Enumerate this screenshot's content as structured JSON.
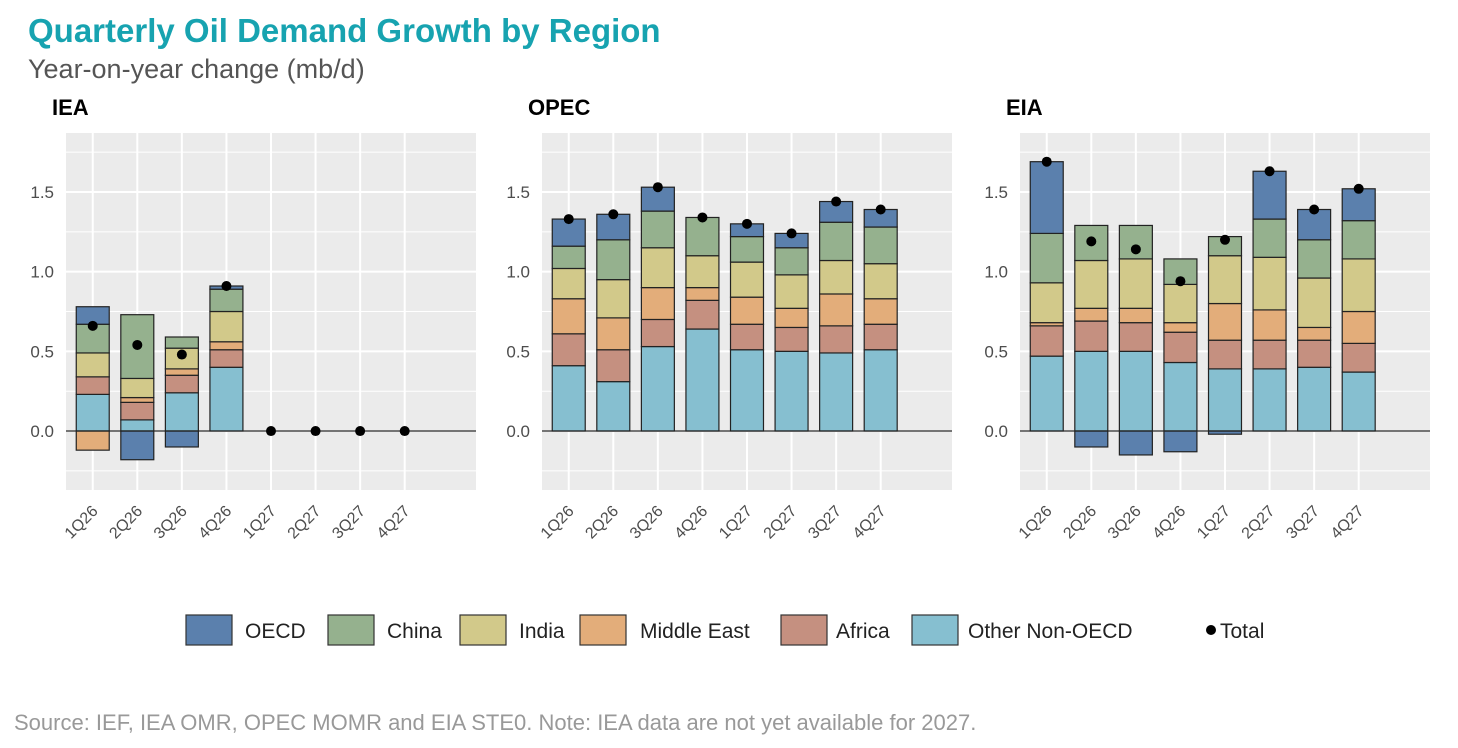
{
  "title": "Quarterly Oil Demand Growth by Region",
  "subtitle": "Year-on-year change (mb/d)",
  "source": "Source: IEF, IEA OMR, OPEC MOMR and EIA STE0. Note: IEA data are not yet available for 2027.",
  "colors": {
    "OECD": "#5b80ad",
    "China": "#95b18e",
    "India": "#d2c98a",
    "Middle East": "#e3ad7a",
    "Africa": "#c59080",
    "Other Non-OECD": "#86bfd0",
    "Total": "#000000",
    "title": "#17a3b0",
    "panel_bg": "#ebebeb"
  },
  "legend": [
    "OECD",
    "China",
    "India",
    "Middle East",
    "Africa",
    "Other Non-OECD",
    "Total"
  ],
  "chart_data": [
    {
      "type": "bar",
      "stacked": true,
      "title": "IEA",
      "categories": [
        "1Q26",
        "2Q26",
        "3Q26",
        "4Q26",
        "1Q27",
        "2Q27",
        "3Q27",
        "4Q27"
      ],
      "ylim": [
        -0.37,
        1.87
      ],
      "yticks": [
        "0.0",
        "0.5",
        "1.0",
        "1.5"
      ],
      "grid": true,
      "legend": "bottom",
      "series": [
        {
          "name": "Other Non-OECD",
          "values": [
            0.23,
            0.07,
            0.24,
            0.4,
            0,
            0,
            0,
            0
          ]
        },
        {
          "name": "Africa",
          "values": [
            0.11,
            0.11,
            0.11,
            0.11,
            0,
            0,
            0,
            0
          ]
        },
        {
          "name": "Middle East",
          "values": [
            -0.12,
            0.03,
            0.04,
            0.05,
            0,
            0,
            0,
            0
          ]
        },
        {
          "name": "India",
          "values": [
            0.15,
            0.12,
            0.13,
            0.19,
            0,
            0,
            0,
            0
          ]
        },
        {
          "name": "China",
          "values": [
            0.18,
            0.4,
            0.07,
            0.14,
            0,
            0,
            0,
            0
          ]
        },
        {
          "name": "OECD",
          "values": [
            0.11,
            -0.18,
            -0.1,
            0.02,
            0,
            0,
            0,
            0
          ]
        }
      ],
      "total": [
        0.66,
        0.54,
        0.48,
        0.91,
        0,
        0,
        0,
        0
      ]
    },
    {
      "type": "bar",
      "stacked": true,
      "title": "OPEC",
      "categories": [
        "1Q26",
        "2Q26",
        "3Q26",
        "4Q26",
        "1Q27",
        "2Q27",
        "3Q27",
        "4Q27"
      ],
      "ylim": [
        -0.37,
        1.87
      ],
      "yticks": [
        "0.0",
        "0.5",
        "1.0",
        "1.5"
      ],
      "grid": true,
      "legend": "bottom",
      "series": [
        {
          "name": "Other Non-OECD",
          "values": [
            0.41,
            0.31,
            0.53,
            0.64,
            0.51,
            0.5,
            0.49,
            0.51
          ]
        },
        {
          "name": "Africa",
          "values": [
            0.2,
            0.2,
            0.17,
            0.18,
            0.16,
            0.15,
            0.17,
            0.16
          ]
        },
        {
          "name": "Middle East",
          "values": [
            0.22,
            0.2,
            0.2,
            0.08,
            0.17,
            0.12,
            0.2,
            0.16
          ]
        },
        {
          "name": "India",
          "values": [
            0.19,
            0.24,
            0.25,
            0.2,
            0.22,
            0.21,
            0.21,
            0.22
          ]
        },
        {
          "name": "China",
          "values": [
            0.14,
            0.25,
            0.23,
            0.24,
            0.16,
            0.17,
            0.24,
            0.23
          ]
        },
        {
          "name": "OECD",
          "values": [
            0.17,
            0.16,
            0.15,
            0.0,
            0.08,
            0.09,
            0.13,
            0.11
          ]
        }
      ],
      "total": [
        1.33,
        1.36,
        1.53,
        1.34,
        1.3,
        1.24,
        1.44,
        1.39
      ]
    },
    {
      "type": "bar",
      "stacked": true,
      "title": "EIA",
      "categories": [
        "1Q26",
        "2Q26",
        "3Q26",
        "4Q26",
        "1Q27",
        "2Q27",
        "3Q27",
        "4Q27"
      ],
      "ylim": [
        -0.37,
        1.87
      ],
      "yticks": [
        "0.0",
        "0.5",
        "1.0",
        "1.5"
      ],
      "grid": true,
      "legend": "bottom",
      "series": [
        {
          "name": "Other Non-OECD",
          "values": [
            0.47,
            0.5,
            0.5,
            0.43,
            0.39,
            0.39,
            0.4,
            0.37
          ]
        },
        {
          "name": "Africa",
          "values": [
            0.19,
            0.19,
            0.18,
            0.19,
            0.18,
            0.18,
            0.17,
            0.18
          ]
        },
        {
          "name": "Middle East",
          "values": [
            0.02,
            0.08,
            0.09,
            0.06,
            0.23,
            0.19,
            0.08,
            0.2
          ]
        },
        {
          "name": "India",
          "values": [
            0.25,
            0.3,
            0.31,
            0.24,
            0.3,
            0.33,
            0.31,
            0.33
          ]
        },
        {
          "name": "China",
          "values": [
            0.31,
            0.22,
            0.21,
            0.16,
            0.12,
            0.24,
            0.24,
            0.24
          ]
        },
        {
          "name": "OECD",
          "values": [
            0.45,
            -0.1,
            -0.15,
            -0.13,
            -0.02,
            0.3,
            0.19,
            0.2
          ]
        }
      ],
      "total": [
        1.69,
        1.19,
        1.14,
        0.94,
        1.2,
        1.63,
        1.39,
        1.52
      ]
    }
  ]
}
